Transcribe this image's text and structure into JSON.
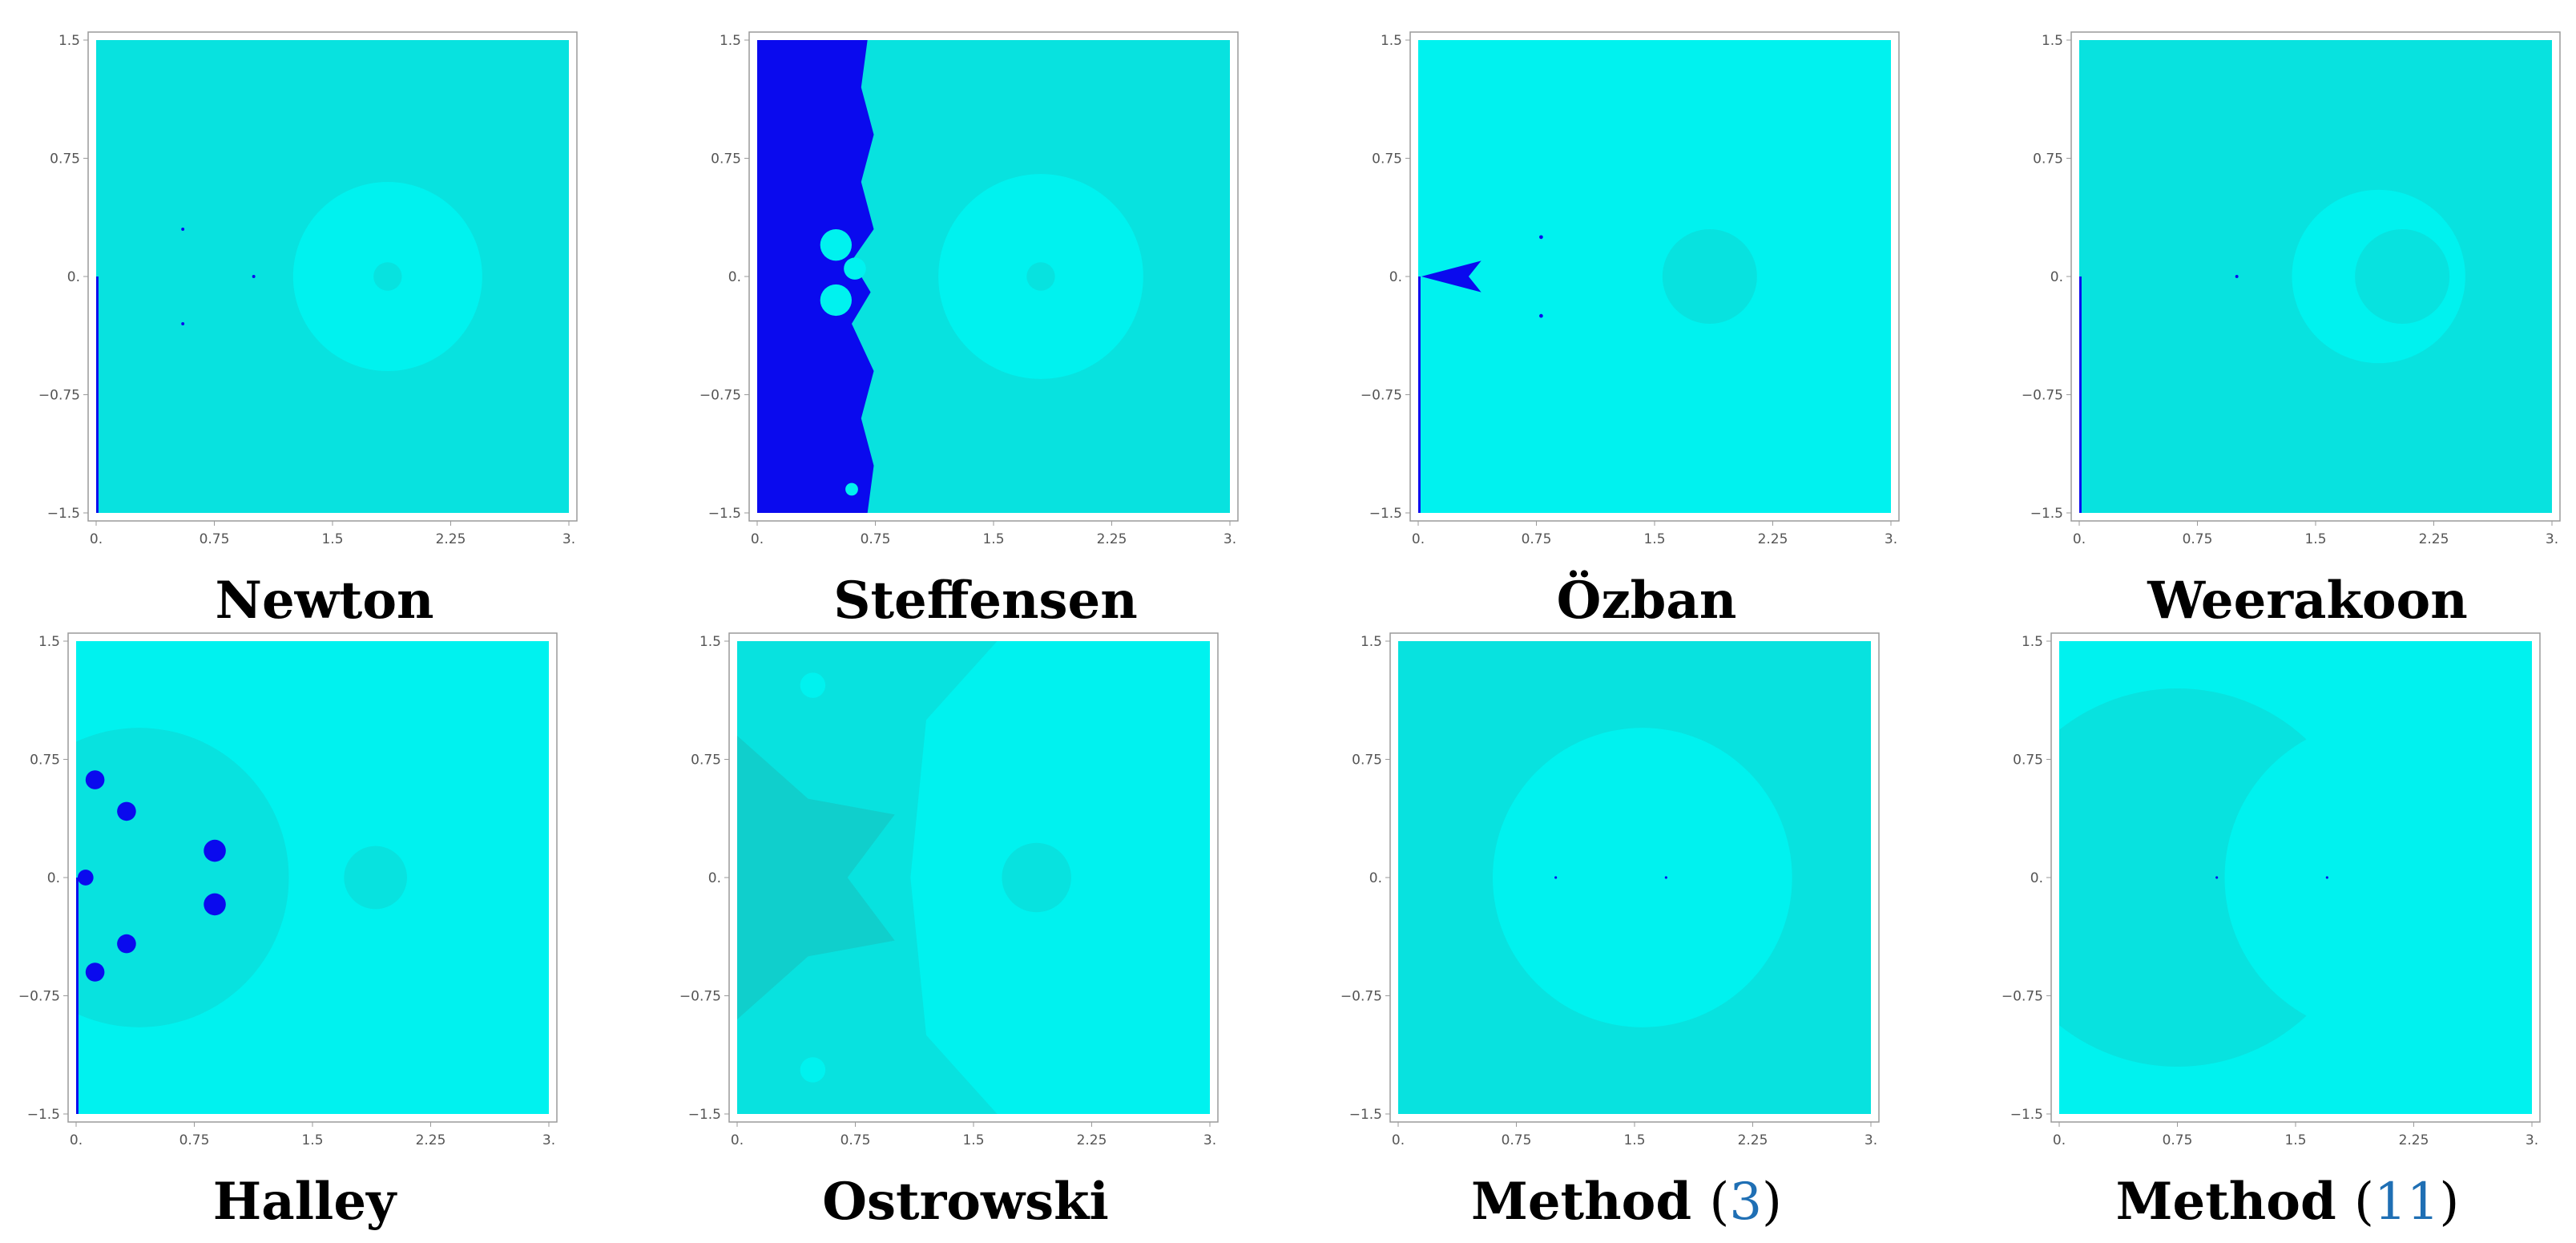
{
  "colors": {
    "basin_light": "#00f2ef",
    "basin_mid": "#08e2df",
    "basin_dark": "#10cfcc",
    "divergence": "#0a0aee",
    "frame": "#9a9a9a",
    "ref_link": "#1f6fb4"
  },
  "chart_data": [
    {
      "type": "heatmap",
      "title": "Newton",
      "x_ticks": [
        "0.",
        "0.75",
        "1.5",
        "2.25",
        "3."
      ],
      "y_ticks": [
        "1.5",
        "0.75",
        "0.",
        "−0.75",
        "−1.5"
      ],
      "xlim": [
        0,
        3
      ],
      "ylim": [
        -1.5,
        1.5
      ],
      "background": "basin_mid",
      "regions": [
        {
          "kind": "circle",
          "cx": 1.85,
          "cy": 0,
          "r": 0.6,
          "color": "basin_light"
        },
        {
          "kind": "circle",
          "cx": 1.85,
          "cy": 0,
          "r": 0.09,
          "color": "basin_mid"
        },
        {
          "kind": "rect",
          "x0": 0,
          "x1": 0.015,
          "y0": -1.5,
          "y1": 0,
          "color": "divergence"
        },
        {
          "kind": "dot",
          "cx": 0.55,
          "cy": 0.3,
          "r": 0.01,
          "color": "divergence"
        },
        {
          "kind": "dot",
          "cx": 0.55,
          "cy": -0.3,
          "r": 0.01,
          "color": "divergence"
        },
        {
          "kind": "dot",
          "cx": 1.0,
          "cy": 0,
          "r": 0.01,
          "color": "divergence"
        }
      ]
    },
    {
      "type": "heatmap",
      "title": "Steffensen",
      "x_ticks": [
        "0.",
        "0.75",
        "1.5",
        "2.25",
        "3."
      ],
      "y_ticks": [
        "1.5",
        "0.75",
        "0.",
        "−0.75",
        "−1.5"
      ],
      "xlim": [
        0,
        3
      ],
      "ylim": [
        -1.5,
        1.5
      ],
      "background": "basin_mid",
      "regions": [
        {
          "kind": "circle",
          "cx": 1.8,
          "cy": 0,
          "r": 0.65,
          "color": "basin_light"
        },
        {
          "kind": "circle",
          "cx": 1.8,
          "cy": 0,
          "r": 0.09,
          "color": "basin_mid"
        },
        {
          "kind": "poly",
          "color": "divergence",
          "points": [
            [
              0,
              1.5
            ],
            [
              0.7,
              1.5
            ],
            [
              0.66,
              1.2
            ],
            [
              0.74,
              0.9
            ],
            [
              0.66,
              0.6
            ],
            [
              0.74,
              0.3
            ],
            [
              0.6,
              0.1
            ],
            [
              0.72,
              -0.1
            ],
            [
              0.6,
              -0.3
            ],
            [
              0.74,
              -0.6
            ],
            [
              0.66,
              -0.9
            ],
            [
              0.74,
              -1.2
            ],
            [
              0.7,
              -1.5
            ],
            [
              0,
              -1.5
            ]
          ]
        },
        {
          "kind": "circle",
          "cx": 0.5,
          "cy": 0.2,
          "r": 0.1,
          "color": "basin_light"
        },
        {
          "kind": "circle",
          "cx": 0.5,
          "cy": -0.15,
          "r": 0.1,
          "color": "basin_light"
        },
        {
          "kind": "circle",
          "cx": 0.62,
          "cy": 0.05,
          "r": 0.07,
          "color": "basin_light"
        },
        {
          "kind": "circle",
          "cx": 0.6,
          "cy": -1.35,
          "r": 0.04,
          "color": "basin_light"
        }
      ]
    },
    {
      "type": "heatmap",
      "title": "Özban",
      "x_ticks": [
        "0.",
        "0.75",
        "1.5",
        "2.25",
        "3."
      ],
      "y_ticks": [
        "1.5",
        "0.75",
        "0.",
        "−0.75",
        "−1.5"
      ],
      "xlim": [
        0,
        3
      ],
      "ylim": [
        -1.5,
        1.5
      ],
      "background": "basin_light",
      "regions": [
        {
          "kind": "circle",
          "cx": 1.85,
          "cy": 0,
          "r": 0.3,
          "color": "basin_mid"
        },
        {
          "kind": "rect",
          "x0": 0,
          "x1": 0.015,
          "y0": -1.5,
          "y1": 0,
          "color": "divergence"
        },
        {
          "kind": "poly",
          "color": "divergence",
          "points": [
            [
              0.02,
              0
            ],
            [
              0.4,
              0.1
            ],
            [
              0.32,
              0
            ],
            [
              0.4,
              -0.1
            ]
          ]
        },
        {
          "kind": "dot",
          "cx": 0.78,
          "cy": 0.25,
          "r": 0.012,
          "color": "divergence"
        },
        {
          "kind": "dot",
          "cx": 0.78,
          "cy": -0.25,
          "r": 0.012,
          "color": "divergence"
        }
      ]
    },
    {
      "type": "heatmap",
      "title": "Weerakoon",
      "x_ticks": [
        "0.",
        "0.75",
        "1.5",
        "2.25",
        "3."
      ],
      "y_ticks": [
        "1.5",
        "0.75",
        "0.",
        "−0.75",
        "−1.5"
      ],
      "xlim": [
        0,
        3
      ],
      "ylim": [
        -1.5,
        1.5
      ],
      "background": "basin_mid",
      "regions": [
        {
          "kind": "circle",
          "cx": 1.9,
          "cy": 0,
          "r": 0.55,
          "color": "basin_light"
        },
        {
          "kind": "circle",
          "cx": 2.05,
          "cy": 0,
          "r": 0.3,
          "color": "basin_mid"
        },
        {
          "kind": "rect",
          "x0": 0,
          "x1": 0.015,
          "y0": -1.5,
          "y1": 0,
          "color": "divergence"
        },
        {
          "kind": "dot",
          "cx": 1.0,
          "cy": 0,
          "r": 0.01,
          "color": "divergence"
        }
      ]
    },
    {
      "type": "heatmap",
      "title": "Halley",
      "x_ticks": [
        "0.",
        "0.75",
        "1.5",
        "2.25",
        "3."
      ],
      "y_ticks": [
        "1.5",
        "0.75",
        "0.",
        "−0.75",
        "−1.5"
      ],
      "xlim": [
        0,
        3
      ],
      "ylim": [
        -1.5,
        1.5
      ],
      "background": "basin_light",
      "regions": [
        {
          "kind": "circle",
          "cx": 0.4,
          "cy": 0,
          "r": 0.95,
          "color": "basin_mid"
        },
        {
          "kind": "circle",
          "cx": 1.9,
          "cy": 0,
          "r": 0.2,
          "color": "basin_mid"
        },
        {
          "kind": "rect",
          "x0": 0,
          "x1": 0.015,
          "y0": -1.5,
          "y1": 0,
          "color": "divergence"
        },
        {
          "kind": "circle",
          "cx": 0.12,
          "cy": 0.62,
          "r": 0.06,
          "color": "divergence"
        },
        {
          "kind": "circle",
          "cx": 0.32,
          "cy": 0.42,
          "r": 0.06,
          "color": "divergence"
        },
        {
          "kind": "circle",
          "cx": 0.12,
          "cy": -0.6,
          "r": 0.06,
          "color": "divergence"
        },
        {
          "kind": "circle",
          "cx": 0.32,
          "cy": -0.42,
          "r": 0.06,
          "color": "divergence"
        },
        {
          "kind": "circle",
          "cx": 0.88,
          "cy": 0.17,
          "r": 0.07,
          "color": "divergence"
        },
        {
          "kind": "circle",
          "cx": 0.88,
          "cy": -0.17,
          "r": 0.07,
          "color": "divergence"
        },
        {
          "kind": "circle",
          "cx": 0.06,
          "cy": 0,
          "r": 0.05,
          "color": "divergence"
        }
      ]
    },
    {
      "type": "heatmap",
      "title": "Ostrowski",
      "x_ticks": [
        "0.",
        "0.75",
        "1.5",
        "2.25",
        "3."
      ],
      "y_ticks": [
        "1.5",
        "0.75",
        "0.",
        "−0.75",
        "−1.5"
      ],
      "xlim": [
        0,
        3
      ],
      "ylim": [
        -1.5,
        1.5
      ],
      "background": "basin_light",
      "regions": [
        {
          "kind": "poly",
          "color": "basin_mid",
          "points": [
            [
              0,
              1.5
            ],
            [
              1.65,
              1.5
            ],
            [
              1.2,
              1.0
            ],
            [
              1.1,
              0
            ],
            [
              1.2,
              -1.0
            ],
            [
              1.65,
              -1.5
            ],
            [
              0,
              -1.5
            ]
          ]
        },
        {
          "kind": "poly",
          "color": "basin_dark",
          "points": [
            [
              0,
              0.9
            ],
            [
              0.45,
              0.5
            ],
            [
              1.0,
              0.4
            ],
            [
              0.7,
              0
            ],
            [
              1.0,
              -0.4
            ],
            [
              0.45,
              -0.5
            ],
            [
              0,
              -0.9
            ]
          ]
        },
        {
          "kind": "circle",
          "cx": 1.9,
          "cy": 0,
          "r": 0.22,
          "color": "basin_mid"
        },
        {
          "kind": "circle",
          "cx": 0.48,
          "cy": 1.22,
          "r": 0.08,
          "color": "basin_light"
        },
        {
          "kind": "circle",
          "cx": 0.48,
          "cy": -1.22,
          "r": 0.08,
          "color": "basin_light"
        }
      ]
    },
    {
      "type": "heatmap",
      "title": "Method",
      "ref": "3",
      "x_ticks": [
        "0.",
        "0.75",
        "1.5",
        "2.25",
        "3."
      ],
      "y_ticks": [
        "1.5",
        "0.75",
        "0.",
        "−0.75",
        "−1.5"
      ],
      "xlim": [
        0,
        3
      ],
      "ylim": [
        -1.5,
        1.5
      ],
      "background": "basin_mid",
      "regions": [
        {
          "kind": "circle",
          "cx": 1.55,
          "cy": 0,
          "r": 0.95,
          "color": "basin_light"
        },
        {
          "kind": "dot",
          "cx": 1.0,
          "cy": 0,
          "r": 0.008,
          "color": "divergence"
        },
        {
          "kind": "dot",
          "cx": 1.7,
          "cy": 0,
          "r": 0.008,
          "color": "divergence"
        }
      ]
    },
    {
      "type": "heatmap",
      "title": "Method",
      "ref": "11",
      "x_ticks": [
        "0.",
        "0.75",
        "1.5",
        "2.25",
        "3."
      ],
      "y_ticks": [
        "1.5",
        "0.75",
        "0.",
        "−0.75",
        "−1.5"
      ],
      "xlim": [
        0,
        3
      ],
      "ylim": [
        -1.5,
        1.5
      ],
      "background": "basin_light",
      "regions": [
        {
          "kind": "circle",
          "cx": 0.75,
          "cy": 0,
          "r": 1.2,
          "color": "basin_mid"
        },
        {
          "kind": "circle",
          "cx": 2.05,
          "cy": 0,
          "r": 1.0,
          "color": "basin_light"
        },
        {
          "kind": "dot",
          "cx": 1.0,
          "cy": 0,
          "r": 0.008,
          "color": "divergence"
        },
        {
          "kind": "dot",
          "cx": 1.7,
          "cy": 0,
          "r": 0.008,
          "color": "divergence"
        }
      ]
    }
  ]
}
